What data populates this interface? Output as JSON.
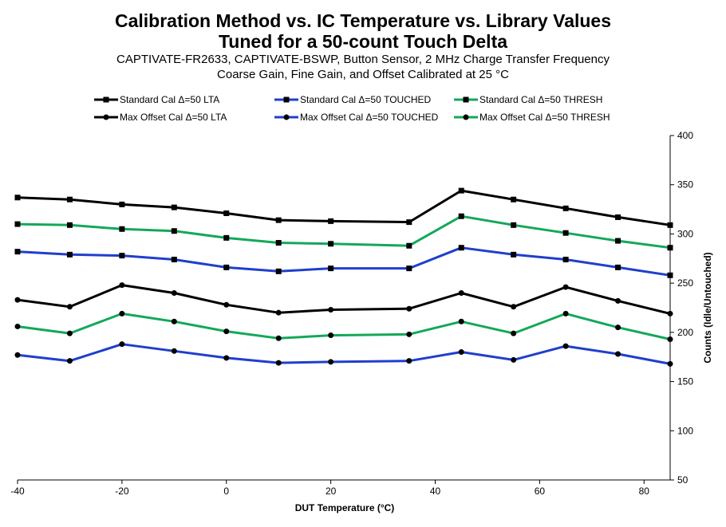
{
  "chart_data": {
    "type": "line",
    "title_lines": [
      "Calibration Method vs. IC Temperature vs. Library Values",
      "Tuned for a 50-count Touch Delta"
    ],
    "subtitle_lines": [
      "CAPTIVATE-FR2633, CAPTIVATE-BSWP, Button Sensor, 2 MHz  Charge Transfer  Frequency",
      "Coarse Gain, Fine Gain, and Offset Calibrated at 25 °C"
    ],
    "xlabel": "DUT Temperature (°C)",
    "ylabel": "Counts (Idle/Untouched)",
    "xlim": [
      -40,
      85
    ],
    "ylim": [
      50,
      400
    ],
    "x_ticks": [
      -40,
      -20,
      0,
      20,
      40,
      60,
      80
    ],
    "y_ticks": [
      50,
      100,
      150,
      200,
      250,
      300,
      350,
      400
    ],
    "y_axis_side": "right",
    "grid": false,
    "legend_position": "top",
    "x": [
      -40,
      -30,
      -20,
      -10,
      0,
      10,
      20,
      35,
      45,
      55,
      65,
      75,
      85
    ],
    "series": [
      {
        "name": "Standard Cal Δ=50 LTA",
        "color": "#000000",
        "marker": "square",
        "values": [
          337,
          335,
          330,
          327,
          321,
          314,
          313,
          312,
          344,
          335,
          326,
          317,
          309
        ]
      },
      {
        "name": "Standard Cal Δ=50 TOUCHED",
        "color": "#1f3fcc",
        "marker": "square",
        "values": [
          282,
          279,
          278,
          274,
          266,
          262,
          265,
          265,
          286,
          279,
          274,
          266,
          258
        ]
      },
      {
        "name": "Standard Cal Δ=50 THRESH",
        "color": "#13a85a",
        "marker": "square",
        "values": [
          310,
          309,
          305,
          303,
          296,
          291,
          290,
          288,
          318,
          309,
          301,
          293,
          286
        ]
      },
      {
        "name": "Max Offset Cal Δ=50 LTA",
        "color": "#000000",
        "marker": "circle",
        "values": [
          233,
          226,
          248,
          240,
          228,
          220,
          223,
          224,
          240,
          226,
          246,
          232,
          219
        ]
      },
      {
        "name": "Max Offset Cal Δ=50 TOUCHED",
        "color": "#1f3fcc",
        "marker": "circle",
        "values": [
          177,
          171,
          188,
          181,
          174,
          169,
          170,
          171,
          180,
          172,
          186,
          178,
          168
        ]
      },
      {
        "name": "Max Offset Cal Δ=50 THRESH",
        "color": "#13a85a",
        "marker": "circle",
        "values": [
          206,
          199,
          219,
          211,
          201,
          194,
          197,
          198,
          211,
          199,
          219,
          205,
          193
        ]
      }
    ]
  }
}
